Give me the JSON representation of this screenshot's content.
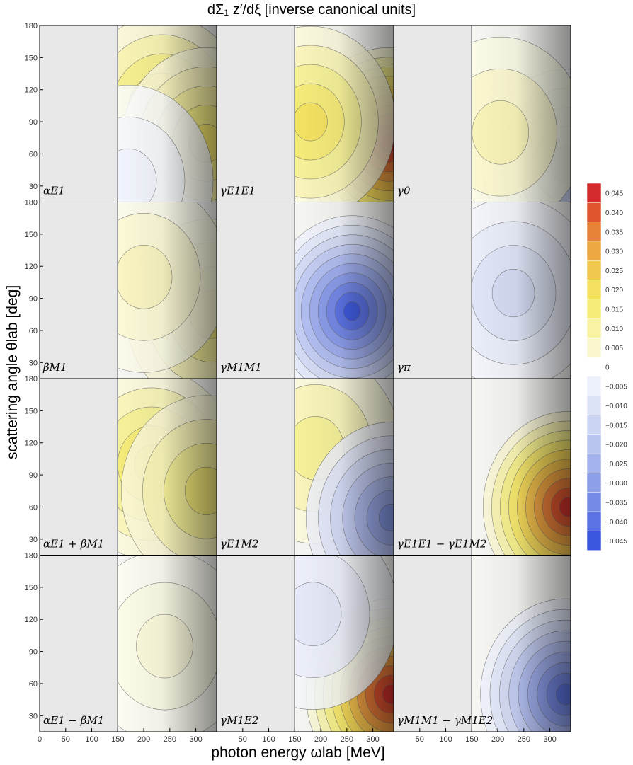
{
  "chart_data": {
    "type": "contour",
    "title": "dΣ₁ z′/dξ [inverse canonical units]",
    "xlabel": "photon energy ωlab [MeV]",
    "ylabel": "scattering angle θlab [deg]",
    "xlim": [
      0,
      340
    ],
    "ylim": [
      15,
      180
    ],
    "x_ticks": [
      0,
      50,
      100,
      150,
      200,
      250,
      300
    ],
    "y_ticks": [
      30,
      60,
      90,
      120,
      150,
      180
    ],
    "shaded_region_below_x": 150,
    "grid": false,
    "legend": "colorbar right",
    "colorbar": {
      "levels": [
        0.045,
        0.04,
        0.035,
        0.03,
        0.025,
        0.02,
        0.015,
        0.01,
        0.005,
        0,
        -0.005,
        -0.01,
        -0.015,
        -0.02,
        -0.025,
        -0.03,
        -0.035,
        -0.04,
        -0.045
      ],
      "labels": [
        "0.045",
        "0.040",
        "0.035",
        "0.030",
        "0.025",
        "0.020",
        "0.015",
        "0.010",
        "0.005",
        "0",
        "−0.005",
        "−0.010",
        "−0.015",
        "−0.020",
        "−0.025",
        "−0.030",
        "−0.035",
        "−0.040",
        "−0.045"
      ],
      "colors": [
        "#d42c2c",
        "#e0552f",
        "#e8823a",
        "#eda843",
        "#f0c84e",
        "#f3e05e",
        "#f5ec7a",
        "#f7f2a4",
        "#faf7cf",
        "#ffffff",
        "#ecf0fa",
        "#dde3f7",
        "#ccd4f4",
        "#b9c4f1",
        "#a4b2ee",
        "#8e9fea",
        "#758ae6",
        "#5a72e3",
        "#3c57df"
      ]
    },
    "panels": [
      {
        "label": "αE1",
        "peaks": [
          {
            "x": 235,
            "y": 100,
            "v": 0.022
          },
          {
            "x": 320,
            "y": 70,
            "v": 0.018
          },
          {
            "x": 170,
            "y": 35,
            "v": -0.004
          }
        ]
      },
      {
        "label": "γE1E1",
        "peaks": [
          {
            "x": 330,
            "y": 70,
            "v": 0.046
          },
          {
            "x": 180,
            "y": 90,
            "v": 0.02
          }
        ]
      },
      {
        "label": "γ0",
        "peaks": [
          {
            "x": 335,
            "y": 50,
            "v": -0.02
          },
          {
            "x": 205,
            "y": 80,
            "v": 0.008
          }
        ]
      },
      {
        "label": "βM1",
        "peaks": [
          {
            "x": 330,
            "y": 75,
            "v": 0.016
          },
          {
            "x": 200,
            "y": 110,
            "v": 0.007
          }
        ]
      },
      {
        "label": "γM1M1",
        "peaks": [
          {
            "x": 260,
            "y": 78,
            "v": -0.045
          }
        ]
      },
      {
        "label": "γπ",
        "peaks": [
          {
            "x": 230,
            "y": 95,
            "v": -0.013
          }
        ]
      },
      {
        "label": "αE1 + βM1",
        "peaks": [
          {
            "x": 215,
            "y": 100,
            "v": 0.02
          },
          {
            "x": 320,
            "y": 75,
            "v": 0.016
          }
        ]
      },
      {
        "label": "γE1M2",
        "peaks": [
          {
            "x": 190,
            "y": 115,
            "v": 0.012
          },
          {
            "x": 335,
            "y": 50,
            "v": -0.032
          }
        ]
      },
      {
        "label": "γE1E1 − γE1M2",
        "peaks": [
          {
            "x": 335,
            "y": 60,
            "v": 0.045
          }
        ]
      },
      {
        "label": "αE1 − βM1",
        "peaks": [
          {
            "x": 240,
            "y": 95,
            "v": 0.004
          }
        ]
      },
      {
        "label": "γM1E2",
        "peaks": [
          {
            "x": 335,
            "y": 50,
            "v": 0.046
          },
          {
            "x": 185,
            "y": 125,
            "v": -0.008
          }
        ]
      },
      {
        "label": "γM1M1 − γM1E2",
        "peaks": [
          {
            "x": 330,
            "y": 50,
            "v": -0.04
          }
        ]
      }
    ]
  }
}
